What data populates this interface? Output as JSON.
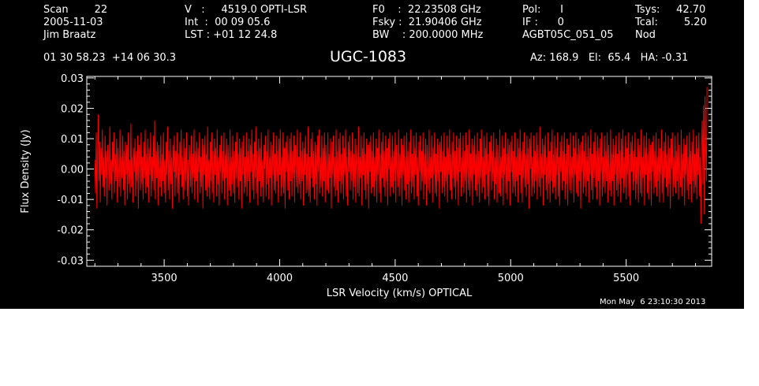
{
  "header": {
    "col1": [
      "Scan        22",
      "2005-11-03",
      "Jim Braatz"
    ],
    "col2": [
      "V   :     4519.0 OPTI-LSR",
      "Int  :  00 09 05.6",
      "LST : +01 12 24.8"
    ],
    "col3": [
      "F0    :  22.23508 GHz",
      "Fsky :  21.90406 GHz",
      "BW    : 200.0000 MHz"
    ],
    "col4": [
      "Pol:      I",
      "IF :      0",
      "AGBT05C_051_05"
    ],
    "col5": [
      "Tsys:     42.70",
      "Tcal:        5.20",
      "Nod"
    ],
    "coords": "01 30 58.23  +14 06 30.3",
    "source": "UGC-1083",
    "azel": "Az: 168.9   El:  65.4   HA: -0.31",
    "timestamp": "Mon May  6 23:10:30 2013"
  },
  "colors": {
    "background": "#000000",
    "axes": "#ffffff",
    "trace": "#ff0000"
  },
  "chart_data": {
    "type": "line",
    "title": "UGC-1083",
    "xlabel": "LSR Velocity (km/s) OPTICAL",
    "ylabel": "Flux Density (Jy)",
    "xlim": [
      3165,
      5870
    ],
    "ylim": [
      -0.032,
      0.0305
    ],
    "x_ticks": [
      3500,
      4000,
      4500,
      5000,
      5500
    ],
    "x_tick_labels": [
      "3500",
      "4000",
      "4500",
      "5000",
      "5500"
    ],
    "y_ticks": [
      -0.03,
      -0.02,
      -0.01,
      0.0,
      0.01,
      0.02,
      0.03
    ],
    "y_tick_labels": [
      "-0.03",
      "-0.02",
      "-0.01",
      "0.00",
      "0.01",
      "0.02",
      "0.03"
    ],
    "grid": false,
    "series": [
      {
        "color": "#ff0000",
        "x_start": 3200,
        "x_end": 5850,
        "values": [
          0.003,
          -0.008,
          0.012,
          -0.013,
          0.006,
          0.018,
          -0.004,
          0.009,
          -0.011,
          0.007,
          -0.002,
          0.013,
          -0.006,
          0.004,
          -0.009,
          0.011,
          -0.003,
          0.006,
          -0.012,
          0.008,
          0.002,
          -0.007,
          0.014,
          -0.005,
          0.003,
          -0.01,
          0.009,
          -0.001,
          0.012,
          -0.008,
          0.005,
          -0.004,
          0.01,
          -0.011,
          0.007,
          0.0,
          -0.006,
          0.013,
          -0.009,
          0.004,
          -0.003,
          0.011,
          -0.007,
          0.006,
          -0.012,
          0.009,
          -0.002,
          0.008,
          -0.01,
          0.012,
          -0.005,
          0.003,
          -0.008,
          0.015,
          -0.006,
          0.004,
          -0.011,
          0.007,
          -0.001,
          0.01,
          -0.009,
          0.006,
          -0.004,
          0.011,
          -0.013,
          0.008,
          0.001,
          -0.007,
          0.012,
          -0.005,
          0.004,
          -0.01,
          0.009,
          -0.003,
          0.013,
          -0.008,
          0.005,
          -0.006,
          0.01,
          -0.011,
          0.007,
          -0.002,
          0.012,
          -0.009,
          0.004,
          -0.004,
          0.011,
          -0.007,
          0.016,
          -0.01,
          0.006,
          -0.003,
          0.009,
          -0.012,
          0.008,
          0.0,
          -0.006,
          0.011,
          -0.009,
          0.005,
          -0.004,
          0.012,
          -0.008,
          0.003,
          -0.011,
          0.009,
          -0.002,
          0.014,
          -0.007,
          0.006,
          -0.01,
          0.01,
          -0.005,
          0.004,
          -0.013,
          0.008,
          -0.001,
          0.011,
          -0.009,
          0.006,
          -0.003,
          0.012,
          -0.008,
          0.005,
          -0.011,
          0.009,
          -0.002,
          0.013,
          -0.006,
          0.004,
          -0.01,
          0.01,
          -0.007,
          0.007,
          -0.004,
          0.012,
          -0.009,
          0.003,
          -0.012,
          0.008,
          0.001,
          -0.006,
          0.011,
          -0.008,
          0.005,
          -0.003,
          0.013,
          -0.01,
          0.006,
          -0.004,
          0.009,
          -0.011,
          0.007,
          -0.001,
          0.012,
          -0.008,
          0.004,
          -0.006,
          0.01,
          -0.013,
          0.008,
          -0.002,
          0.011,
          -0.007,
          0.005,
          -0.009,
          0.014,
          -0.006,
          0.003,
          -0.01,
          0.009,
          -0.004,
          0.012,
          -0.008,
          0.006,
          -0.011,
          0.01,
          -0.002,
          0.007,
          -0.009,
          0.013,
          -0.005,
          0.004,
          -0.012,
          0.008,
          -0.001,
          0.011,
          -0.008,
          0.006,
          -0.004,
          0.012,
          -0.01,
          0.005,
          -0.003,
          0.01,
          -0.012,
          0.008,
          0.002,
          -0.007,
          0.013,
          -0.009,
          0.004,
          -0.005,
          0.011,
          -0.008,
          0.006,
          -0.011,
          0.009,
          -0.003,
          0.012,
          -0.006,
          0.005,
          -0.01,
          0.01,
          -0.004,
          0.007,
          -0.013,
          0.009,
          -0.002,
          0.011,
          -0.008,
          0.004,
          -0.006,
          0.012,
          -0.009,
          0.006,
          -0.004,
          0.01,
          -0.011,
          0.008,
          -0.001,
          0.013,
          -0.007,
          0.005,
          -0.01,
          0.009,
          -0.003,
          0.014,
          -0.008,
          0.006,
          -0.012,
          0.01,
          -0.004,
          0.007,
          -0.009,
          0.012,
          -0.006,
          0.003,
          -0.011,
          0.008,
          0.0,
          0.011,
          -0.009,
          0.006,
          -0.005,
          0.013,
          -0.01,
          0.004,
          -0.003,
          0.009,
          -0.012,
          0.008,
          -0.002,
          0.012,
          -0.007,
          0.005,
          -0.008,
          0.011,
          -0.004,
          0.006,
          -0.011,
          0.01,
          -0.002,
          0.013,
          -0.009,
          0.004,
          -0.006,
          0.012,
          -0.008,
          0.007,
          -0.013,
          0.009,
          -0.001,
          0.011,
          -0.007,
          0.005,
          -0.01,
          0.01,
          -0.004,
          0.012,
          -0.009,
          0.006,
          -0.003,
          0.011,
          -0.011,
          0.008,
          0.001,
          -0.006,
          0.013,
          -0.008,
          0.004,
          -0.005,
          0.012,
          -0.01,
          0.006,
          -0.004,
          0.009,
          -0.012,
          0.007,
          -0.002,
          0.011,
          -0.008,
          0.005,
          -0.007,
          0.014,
          -0.009,
          0.004,
          -0.011,
          0.01,
          -0.003,
          0.012,
          -0.006,
          0.006,
          -0.01,
          0.009,
          -0.005,
          0.008,
          -0.012,
          0.011,
          -0.001,
          0.013,
          -0.008,
          0.004,
          -0.006,
          0.011,
          -0.009,
          0.007,
          -0.004,
          0.012,
          -0.011,
          0.008,
          0.0,
          -0.007,
          0.012,
          -0.008,
          0.005,
          -0.003,
          0.01,
          -0.013,
          0.009,
          -0.002,
          0.011,
          -0.006,
          0.004,
          -0.009,
          0.013,
          -0.007,
          0.006,
          -0.011,
          0.01,
          -0.004,
          0.012,
          -0.008,
          0.005,
          -0.005,
          0.011,
          -0.01,
          0.007,
          -0.002,
          0.013,
          -0.009,
          0.004,
          -0.012,
          0.009,
          -0.001,
          0.011,
          -0.007,
          0.006,
          -0.004,
          0.012,
          -0.01,
          0.005,
          -0.006,
          0.01,
          -0.011,
          0.008,
          0.001,
          -0.008,
          0.014,
          -0.009,
          0.004,
          -0.003,
          0.011,
          -0.012,
          0.007,
          -0.002,
          0.012,
          -0.007,
          0.005,
          -0.01,
          0.01,
          -0.005,
          0.008,
          -0.013,
          0.009,
          -0.001,
          0.011,
          -0.008,
          0.006,
          -0.006,
          0.012,
          -0.009,
          0.004,
          -0.004,
          0.01,
          -0.011,
          0.007,
          -0.002,
          0.013,
          -0.008,
          0.005,
          -0.011,
          0.009,
          -0.003,
          0.012,
          -0.006,
          0.006,
          -0.009,
          0.011,
          -0.004,
          0.007,
          -0.012,
          0.01,
          0.0,
          0.012,
          -0.009,
          0.004,
          -0.006,
          0.011,
          -0.008,
          0.006,
          -0.004,
          0.012,
          -0.011,
          0.008,
          -0.001,
          -0.006,
          0.013,
          -0.009,
          0.005,
          -0.003,
          0.01,
          -0.012,
          0.008,
          -0.002,
          0.011,
          -0.007,
          0.004,
          -0.01,
          0.012,
          -0.005,
          0.006,
          -0.011,
          0.009,
          -0.004,
          0.013,
          -0.008,
          0.005,
          -0.006,
          0.011,
          -0.01,
          0.007,
          -0.002,
          0.012,
          -0.009,
          0.004,
          -0.012,
          0.009,
          -0.001,
          0.011,
          -0.007,
          0.006,
          -0.004,
          0.012,
          -0.01,
          0.005,
          -0.005,
          0.01,
          -0.012,
          0.008,
          0.001,
          -0.007,
          0.013,
          -0.008,
          0.004,
          -0.003,
          0.011,
          -0.011,
          0.007,
          -0.002,
          0.012,
          -0.008,
          0.005,
          -0.009,
          0.01,
          -0.004,
          0.008,
          -0.013,
          0.009,
          -0.001,
          0.011,
          -0.008,
          0.006,
          -0.006,
          0.012,
          -0.009,
          0.004,
          -0.004,
          0.011,
          -0.011,
          0.007,
          -0.002,
          0.013,
          -0.007,
          0.005,
          -0.01,
          0.009,
          -0.003,
          0.012,
          -0.006,
          0.006,
          -0.01,
          0.011,
          -0.004,
          0.007,
          -0.012,
          0.01,
          -0.001,
          0.012,
          -0.009,
          0.004,
          -0.006,
          0.011,
          -0.008,
          0.006,
          -0.004,
          0.012,
          -0.011,
          0.008,
          0.0,
          -0.007,
          0.013,
          -0.009,
          0.005,
          -0.004,
          0.01,
          -0.012,
          0.008,
          -0.002,
          0.011,
          -0.007,
          0.005,
          -0.009,
          0.012,
          -0.005,
          0.006,
          -0.011,
          0.01,
          -0.003,
          0.013,
          -0.008,
          0.004,
          -0.006,
          0.011,
          -0.01,
          0.007,
          -0.002,
          0.012,
          -0.009,
          0.005,
          -0.012,
          0.009,
          -0.001,
          0.011,
          -0.007,
          0.006,
          -0.004,
          0.012,
          -0.01,
          0.004,
          -0.005,
          0.01,
          -0.011,
          0.008,
          0.001,
          -0.008,
          0.013,
          -0.009,
          0.004,
          -0.003,
          0.011,
          -0.012,
          0.007,
          -0.002,
          0.012,
          -0.008,
          0.005,
          -0.01,
          0.01,
          -0.004,
          0.008,
          -0.012,
          0.009,
          -0.001,
          0.011,
          -0.008,
          0.006,
          -0.006,
          0.012,
          -0.009,
          0.004,
          -0.004,
          0.01,
          -0.011,
          0.007,
          -0.002,
          0.013,
          -0.008,
          0.006,
          -0.011,
          0.009,
          -0.003,
          0.012,
          -0.006,
          0.005,
          -0.009,
          0.011,
          -0.005,
          0.007,
          -0.013,
          0.01,
          0.0,
          0.012,
          -0.009,
          0.004,
          -0.006,
          0.011,
          -0.008,
          0.006,
          -0.004,
          0.012,
          -0.01,
          0.008,
          -0.001,
          -0.006,
          0.014,
          -0.009,
          0.005,
          -0.003,
          0.01,
          -0.012,
          0.008,
          -0.002,
          0.011,
          -0.007,
          0.004,
          -0.01,
          0.012,
          -0.005,
          0.006,
          -0.011,
          0.009,
          -0.004,
          0.013,
          -0.008,
          0.005,
          -0.006,
          0.011,
          -0.01,
          0.007,
          -0.002,
          0.012,
          -0.009,
          0.004,
          -0.012,
          0.009,
          -0.001,
          0.011,
          -0.007,
          0.006,
          -0.004,
          0.012,
          -0.01,
          0.005,
          -0.005,
          0.01,
          -0.012,
          0.008,
          0.001,
          -0.007,
          0.012,
          -0.008,
          0.004,
          -0.003,
          0.011,
          -0.011,
          0.007,
          -0.002,
          0.012,
          -0.008,
          0.005,
          -0.009,
          0.01,
          -0.004,
          0.008,
          -0.013,
          0.009,
          -0.001,
          0.011,
          -0.008,
          0.006,
          -0.006,
          0.012,
          -0.009,
          0.004,
          -0.004,
          0.011,
          -0.011,
          0.007,
          -0.002,
          0.013,
          -0.007,
          0.005,
          -0.01,
          0.009,
          -0.003,
          0.012,
          -0.006,
          0.006,
          -0.01,
          0.011,
          -0.004,
          0.007,
          -0.012,
          0.01,
          -0.001,
          0.012,
          -0.009,
          0.004,
          -0.006,
          0.011,
          -0.008,
          0.006,
          -0.004,
          0.012,
          -0.011,
          0.008,
          0.0,
          -0.007,
          0.013,
          -0.009,
          0.005,
          -0.004,
          0.01,
          -0.012,
          0.008,
          -0.002,
          0.011,
          -0.007,
          0.005,
          -0.009,
          0.012,
          -0.005,
          0.006,
          -0.011,
          0.01,
          -0.003,
          0.013,
          -0.008,
          0.004,
          -0.006,
          0.011,
          -0.01,
          0.007,
          -0.002,
          0.012,
          -0.009,
          0.005,
          -0.012,
          0.009,
          -0.001,
          0.011,
          -0.007,
          0.006,
          -0.004,
          0.012,
          -0.01,
          0.004,
          -0.005,
          0.01,
          -0.011,
          0.008,
          0.001,
          -0.008,
          0.013,
          -0.009,
          0.004,
          -0.003,
          0.011,
          -0.012,
          0.007,
          -0.002,
          0.012,
          -0.008,
          0.005,
          -0.01,
          0.01,
          -0.004,
          0.008,
          -0.012,
          0.009,
          -0.001,
          0.011,
          -0.008,
          0.006,
          -0.006,
          0.012,
          -0.009,
          0.004,
          -0.004,
          0.01,
          -0.011,
          0.007,
          -0.002,
          0.013,
          -0.008,
          0.006,
          -0.011,
          0.009,
          -0.003,
          0.012,
          -0.006,
          0.005,
          -0.009,
          0.011,
          -0.005,
          0.007,
          -0.013,
          0.01,
          0.0,
          0.012,
          -0.009,
          0.004,
          -0.006,
          0.011,
          -0.008,
          0.006,
          -0.004,
          0.012,
          -0.01,
          0.008,
          -0.001,
          -0.006,
          0.013,
          -0.009,
          0.005,
          -0.003,
          0.01,
          -0.012,
          0.008,
          -0.002,
          0.011,
          -0.007,
          0.004,
          -0.01,
          0.012,
          -0.005,
          0.006,
          -0.011,
          0.009,
          -0.004,
          0.013,
          -0.008,
          0.005,
          -0.006,
          0.011,
          -0.01,
          0.007,
          -0.002,
          0.012,
          -0.009,
          0.004,
          -0.018,
          0.009,
          0.016,
          -0.005,
          0.021,
          -0.015,
          0.024,
          0.008,
          -0.004,
          0.027
        ]
      }
    ]
  }
}
